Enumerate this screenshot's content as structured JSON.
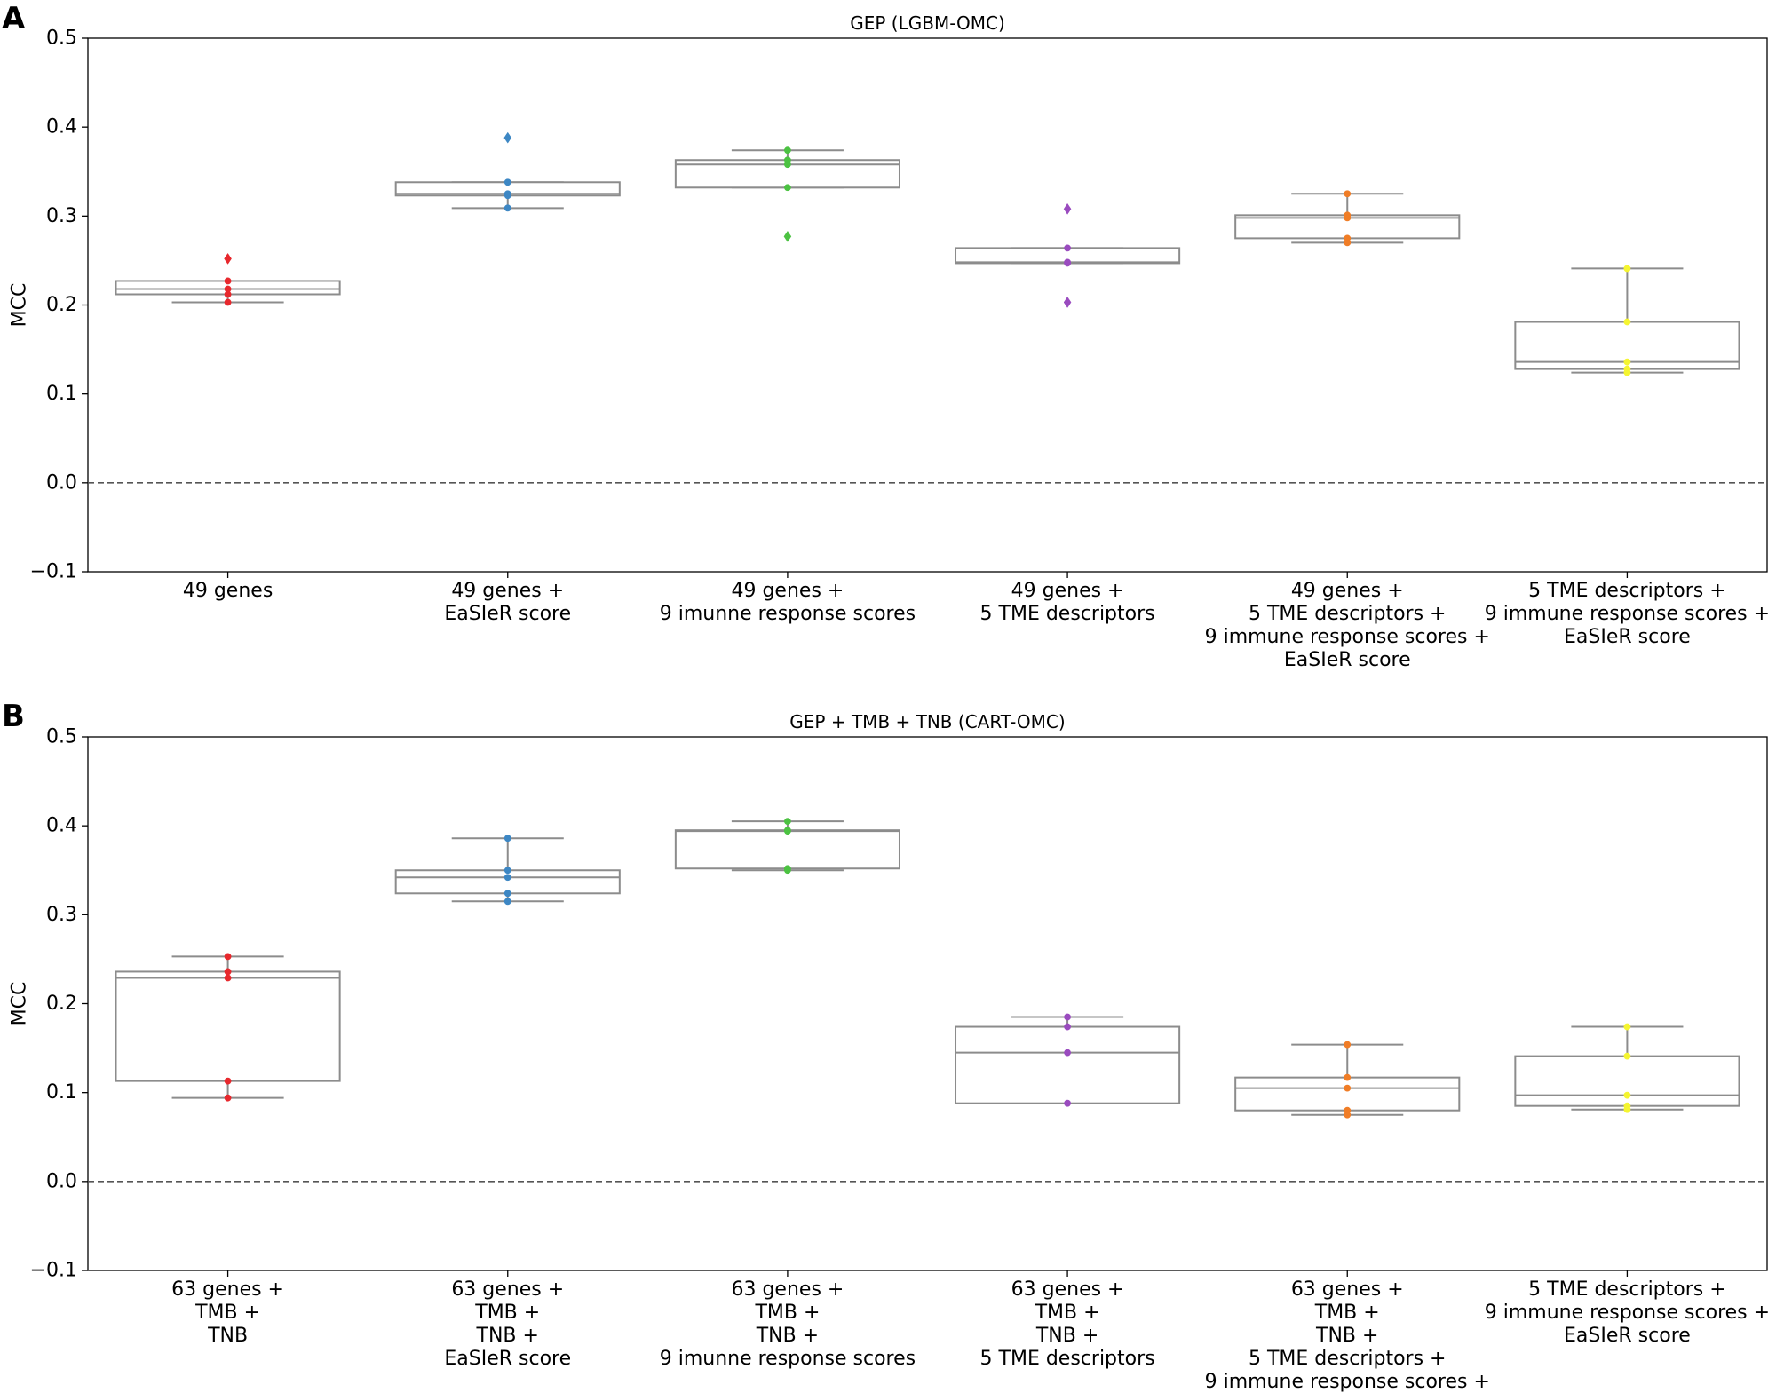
{
  "chart_data": [
    {
      "type": "box",
      "panel": "A",
      "title": "GEP (LGBM-OMC)",
      "ylabel": "MCC",
      "xlabel": "",
      "ylim": [
        -0.1,
        0.5
      ],
      "yticks": [
        "−0.1",
        "0.0",
        "0.1",
        "0.2",
        "0.3",
        "0.4",
        "0.5"
      ],
      "ytick_values": [
        -0.1,
        0.0,
        0.1,
        0.2,
        0.3,
        0.4,
        0.5
      ],
      "reference_line": 0.0,
      "categories": [
        [
          "49 genes"
        ],
        [
          "49 genes +",
          "EaSIeR score"
        ],
        [
          "49 genes +",
          "9 imunne response scores"
        ],
        [
          "49 genes +",
          "5 TME descriptors"
        ],
        [
          "49 genes +",
          "5 TME descriptors +",
          "9 immune response scores +",
          "EaSIeR score"
        ],
        [
          "5 TME descriptors +",
          "9 immune response scores +",
          "EaSIeR score"
        ]
      ],
      "colors": [
        "#e8282d",
        "#3d87c4",
        "#4cc242",
        "#9a4bbf",
        "#f07d26",
        "#f5f530"
      ],
      "boxes": [
        {
          "whislo": 0.203,
          "q1": 0.212,
          "med": 0.218,
          "q3": 0.227,
          "whishi": 0.227,
          "points": [
            0.203,
            0.212,
            0.218,
            0.227
          ],
          "outliers": [
            0.252
          ]
        },
        {
          "whislo": 0.309,
          "q1": 0.323,
          "med": 0.325,
          "q3": 0.338,
          "whishi": 0.338,
          "points": [
            0.309,
            0.323,
            0.325,
            0.338
          ],
          "outliers": [
            0.388
          ]
        },
        {
          "whislo": 0.332,
          "q1": 0.332,
          "med": 0.358,
          "q3": 0.363,
          "whishi": 0.374,
          "points": [
            0.332,
            0.358,
            0.363,
            0.374
          ],
          "outliers": [
            0.277
          ]
        },
        {
          "whislo": 0.247,
          "q1": 0.247,
          "med": 0.248,
          "q3": 0.264,
          "whishi": 0.264,
          "points": [
            0.247,
            0.248,
            0.264
          ],
          "outliers": [
            0.308,
            0.203
          ]
        },
        {
          "whislo": 0.27,
          "q1": 0.275,
          "med": 0.298,
          "q3": 0.301,
          "whishi": 0.325,
          "points": [
            0.27,
            0.275,
            0.298,
            0.301,
            0.325
          ],
          "outliers": []
        },
        {
          "whislo": 0.124,
          "q1": 0.128,
          "med": 0.136,
          "q3": 0.181,
          "whishi": 0.241,
          "points": [
            0.124,
            0.128,
            0.136,
            0.181,
            0.241
          ],
          "outliers": []
        }
      ]
    },
    {
      "type": "box",
      "panel": "B",
      "title": "GEP + TMB + TNB (CART-OMC)",
      "ylabel": "MCC",
      "xlabel": "",
      "ylim": [
        -0.1,
        0.5
      ],
      "yticks": [
        "−0.1",
        "0.0",
        "0.1",
        "0.2",
        "0.3",
        "0.4",
        "0.5"
      ],
      "ytick_values": [
        -0.1,
        0.0,
        0.1,
        0.2,
        0.3,
        0.4,
        0.5
      ],
      "reference_line": 0.0,
      "categories": [
        [
          "63 genes +",
          "TMB +",
          "TNB"
        ],
        [
          "63 genes +",
          "TMB +",
          "TNB +",
          "EaSIeR score"
        ],
        [
          "63 genes +",
          "TMB +",
          "TNB +",
          "9 imunne response scores"
        ],
        [
          "63 genes +",
          "TMB +",
          "TNB +",
          "5 TME descriptors"
        ],
        [
          "63 genes +",
          "TMB +",
          "TNB +",
          "5 TME descriptors +",
          "9 immune response scores +"
        ],
        [
          "5 TME descriptors +",
          "9 immune response scores +",
          "EaSIeR score"
        ]
      ],
      "colors": [
        "#e8282d",
        "#3d87c4",
        "#4cc242",
        "#9a4bbf",
        "#f07d26",
        "#f5f530"
      ],
      "boxes": [
        {
          "whislo": 0.094,
          "q1": 0.113,
          "med": 0.229,
          "q3": 0.236,
          "whishi": 0.253,
          "points": [
            0.094,
            0.113,
            0.229,
            0.236,
            0.253
          ],
          "outliers": []
        },
        {
          "whislo": 0.315,
          "q1": 0.324,
          "med": 0.342,
          "q3": 0.35,
          "whishi": 0.386,
          "points": [
            0.315,
            0.324,
            0.342,
            0.35,
            0.386
          ],
          "outliers": []
        },
        {
          "whislo": 0.35,
          "q1": 0.352,
          "med": 0.394,
          "q3": 0.395,
          "whishi": 0.405,
          "points": [
            0.35,
            0.352,
            0.394,
            0.395,
            0.405
          ],
          "outliers": []
        },
        {
          "whislo": 0.088,
          "q1": 0.088,
          "med": 0.145,
          "q3": 0.174,
          "whishi": 0.185,
          "points": [
            0.088,
            0.145,
            0.174,
            0.185
          ],
          "outliers": []
        },
        {
          "whislo": 0.075,
          "q1": 0.08,
          "med": 0.105,
          "q3": 0.117,
          "whishi": 0.154,
          "points": [
            0.075,
            0.08,
            0.105,
            0.117,
            0.154
          ],
          "outliers": []
        },
        {
          "whislo": 0.081,
          "q1": 0.085,
          "med": 0.097,
          "q3": 0.141,
          "whishi": 0.174,
          "points": [
            0.081,
            0.085,
            0.097,
            0.141,
            0.174
          ],
          "outliers": []
        }
      ]
    }
  ]
}
